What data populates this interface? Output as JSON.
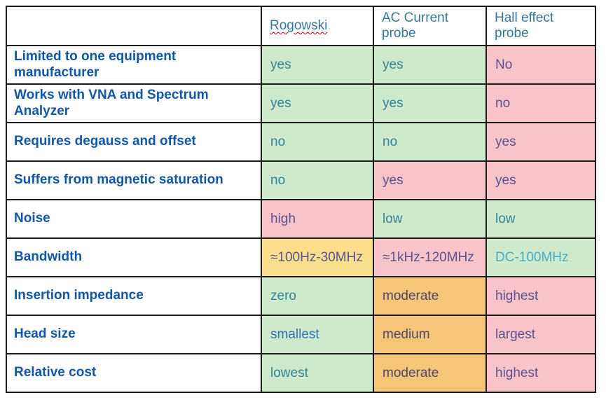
{
  "palette": {
    "green": "#cfe9cd",
    "pink": "#f8c3c9",
    "yellow": "#fbdf8d",
    "orange": "#f7c577",
    "border": "#1c1c1c",
    "label_blue": "#1157a8",
    "header_blue": "#34789c",
    "teal": "#31849b",
    "purple": "#59538f",
    "slate": "#4c4a6b",
    "blue": "#2e74b5",
    "light_blue": "#4bacc6",
    "squiggle_red": "#c00000"
  },
  "table": {
    "corner_label": "",
    "columns": [
      {
        "label": "Rogowski",
        "spellcheck_underline": true
      },
      {
        "label": "AC Current probe",
        "spellcheck_underline": false
      },
      {
        "label": "Hall effect probe",
        "spellcheck_underline": false
      }
    ],
    "rows": [
      {
        "label": "Limited to one equipment manufacturer",
        "cells": [
          {
            "text": "yes",
            "bg": "green",
            "fg": "teal"
          },
          {
            "text": "yes",
            "bg": "green",
            "fg": "teal"
          },
          {
            "text": "No",
            "bg": "pink",
            "fg": "purple"
          }
        ]
      },
      {
        "label": "Works with VNA and Spectrum Analyzer",
        "cells": [
          {
            "text": "yes",
            "bg": "green",
            "fg": "teal"
          },
          {
            "text": "yes",
            "bg": "green",
            "fg": "teal"
          },
          {
            "text": "no",
            "bg": "pink",
            "fg": "purple"
          }
        ]
      },
      {
        "label": "Requires degauss and offset",
        "cells": [
          {
            "text": "no",
            "bg": "green",
            "fg": "teal"
          },
          {
            "text": "no",
            "bg": "green",
            "fg": "teal"
          },
          {
            "text": "yes",
            "bg": "pink",
            "fg": "purple"
          }
        ]
      },
      {
        "label": "Suffers from magnetic saturation",
        "cells": [
          {
            "text": "no",
            "bg": "green",
            "fg": "teal"
          },
          {
            "text": "yes",
            "bg": "pink",
            "fg": "purple"
          },
          {
            "text": "yes",
            "bg": "pink",
            "fg": "purple"
          }
        ]
      },
      {
        "label": "Noise",
        "cells": [
          {
            "text": "high",
            "bg": "pink",
            "fg": "purple"
          },
          {
            "text": "low",
            "bg": "green",
            "fg": "teal"
          },
          {
            "text": "low",
            "bg": "green",
            "fg": "teal"
          }
        ]
      },
      {
        "label": "Bandwidth",
        "cells": [
          {
            "text": "≈100Hz-30MHz",
            "bg": "yellow",
            "fg": "purple"
          },
          {
            "text": "≈1kHz-120MHz",
            "bg": "pink",
            "fg": "purple"
          },
          {
            "text": "DC-100MHz",
            "bg": "green",
            "fg": "light_blue"
          }
        ]
      },
      {
        "label": "Insertion impedance",
        "cells": [
          {
            "text": "zero",
            "bg": "green",
            "fg": "teal"
          },
          {
            "text": "moderate",
            "bg": "orange",
            "fg": "slate"
          },
          {
            "text": "highest",
            "bg": "pink",
            "fg": "purple"
          }
        ]
      },
      {
        "label": "Head size",
        "cells": [
          {
            "text": "smallest",
            "bg": "green",
            "fg": "blue"
          },
          {
            "text": "medium",
            "bg": "orange",
            "fg": "slate"
          },
          {
            "text": "largest",
            "bg": "pink",
            "fg": "purple"
          }
        ]
      },
      {
        "label": "Relative cost",
        "cells": [
          {
            "text": "lowest",
            "bg": "green",
            "fg": "teal"
          },
          {
            "text": "moderate",
            "bg": "orange",
            "fg": "slate"
          },
          {
            "text": "highest",
            "bg": "pink",
            "fg": "purple"
          }
        ]
      }
    ]
  }
}
